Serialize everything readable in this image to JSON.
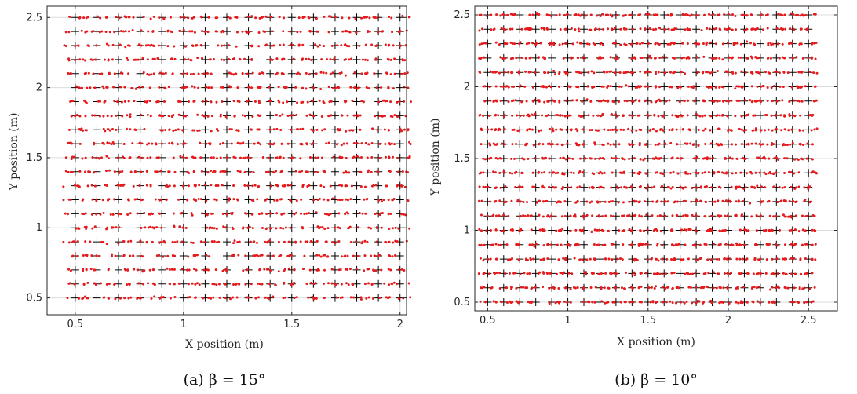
{
  "colors": {
    "estimate": "#e41a1c",
    "ground_truth": "#000000",
    "grid": "#dcdcdc",
    "axes": "#262626"
  },
  "chart_data": [
    {
      "type": "scatter",
      "caption": "(a) β = 15°",
      "xlabel": "X position (m)",
      "ylabel": "Y position (m)",
      "xlim": [
        0.37,
        2.03
      ],
      "ylim": [
        0.38,
        2.58
      ],
      "xticks": [
        0.5,
        1,
        1.5,
        2
      ],
      "xtick_labels": [
        "0.5",
        "1",
        "1.5",
        "2"
      ],
      "yticks": [
        0.5,
        1,
        1.5,
        2,
        2.5
      ],
      "ytick_labels": [
        "0.5",
        "1",
        "1.5",
        "2",
        "2.5"
      ],
      "grid": true,
      "legend": "none",
      "series": [
        {
          "marker": "plus",
          "color": "#000000",
          "grid_x": [
            0.5,
            2.0,
            0.1
          ],
          "grid_y": [
            0.5,
            2.5,
            0.1
          ]
        },
        {
          "marker": "dot",
          "color": "#e41a1c",
          "grid_x": [
            0.5,
            2.0,
            0.1
          ],
          "grid_y": [
            0.5,
            2.5,
            0.1
          ],
          "samples_per_point": 5,
          "spread": 0.05
        }
      ]
    },
    {
      "type": "scatter",
      "caption": "(b) β = 10°",
      "xlabel": "X position (m)",
      "ylabel": "Y position (m)",
      "xlim": [
        0.42,
        2.68
      ],
      "ylim": [
        0.44,
        2.56
      ],
      "xticks": [
        0.5,
        1,
        1.5,
        2,
        2.5
      ],
      "xtick_labels": [
        "0.5",
        "1",
        "1.5",
        "2",
        "2.5"
      ],
      "yticks": [
        0.5,
        1,
        1.5,
        2,
        2.5
      ],
      "ytick_labels": [
        "0.5",
        "1",
        "1.5",
        "2",
        "2.5"
      ],
      "grid": true,
      "legend": "none",
      "series": [
        {
          "marker": "plus",
          "color": "#000000",
          "grid_x": [
            0.5,
            2.5,
            0.1
          ],
          "grid_y": [
            0.5,
            2.5,
            0.1
          ]
        },
        {
          "marker": "dot",
          "color": "#e41a1c",
          "grid_x": [
            0.5,
            2.5,
            0.1
          ],
          "grid_y": [
            0.5,
            2.5,
            0.1
          ],
          "samples_per_point": 5,
          "spread": 0.05
        }
      ]
    }
  ]
}
